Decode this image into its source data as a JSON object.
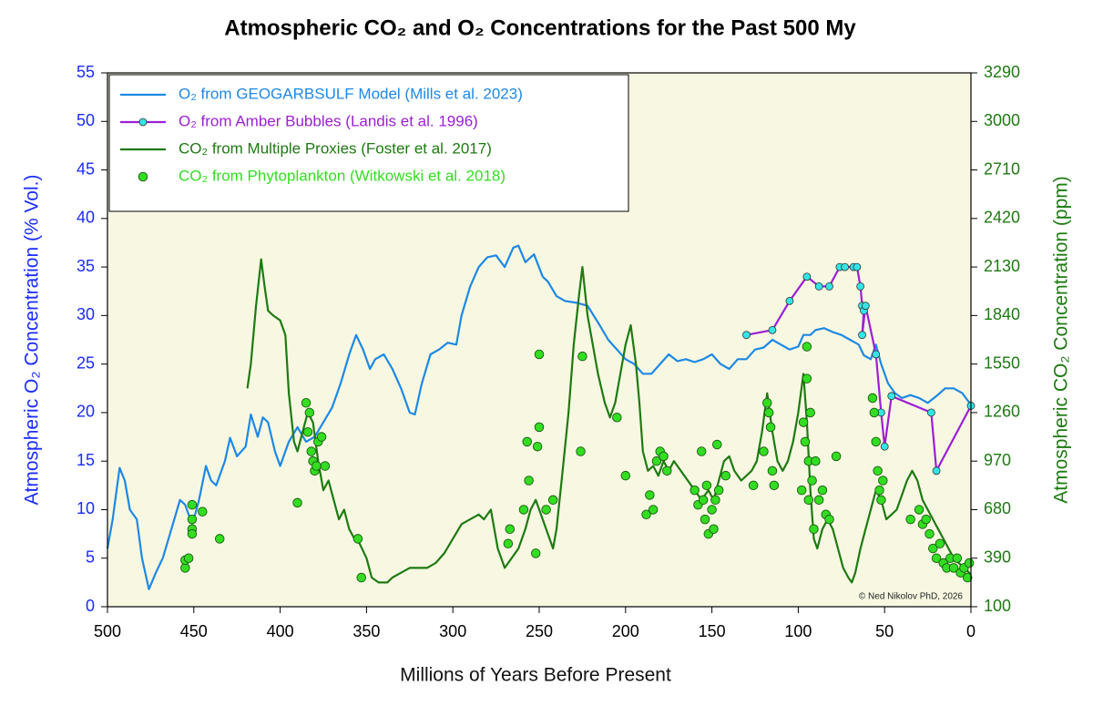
{
  "chart_data": {
    "type": "line",
    "title": "Atmospheric CO₂ and O₂ Concentrations for the Past 500 My",
    "x_label": "Millions of Years Before Present",
    "y_label": "Atmospheric O₂ Concentration (% Vol.)",
    "y2_label": "Atmospheric CO₂ Concentration (ppm)",
    "annotation": "© Ned Nikolov PhD, 2026",
    "xlim": [
      500,
      0
    ],
    "xticks": [
      500,
      450,
      400,
      350,
      300,
      250,
      200,
      150,
      100,
      50,
      0
    ],
    "ylim": [
      0,
      55
    ],
    "yticks": [
      0,
      5,
      10,
      15,
      20,
      25,
      30,
      35,
      40,
      45,
      50,
      55
    ],
    "y2lim": [
      100,
      3290
    ],
    "y2ticks": [
      100,
      390,
      680,
      970,
      1260,
      1550,
      1840,
      2130,
      2420,
      2710,
      3000,
      3290
    ],
    "legend": "upper left",
    "series": [
      {
        "name": "O₂ from GEOGARBSULF Model (Mills et al. 2023)",
        "type": "line",
        "color": "#1e88e5",
        "x": [
          500,
          497,
          493,
          490,
          487,
          483,
          480,
          476,
          472,
          468,
          463,
          458,
          455,
          452,
          450,
          447,
          443,
          440,
          437,
          432,
          429,
          425,
          420,
          417,
          413,
          410,
          407,
          403,
          400,
          395,
          390,
          385,
          380,
          375,
          370,
          365,
          360,
          356,
          352,
          348,
          345,
          340,
          335,
          330,
          325,
          322,
          318,
          313,
          308,
          303,
          298,
          295,
          290,
          285,
          280,
          275,
          270,
          265,
          262,
          258,
          253,
          248,
          245,
          240,
          235,
          228,
          222,
          215,
          210,
          205,
          200,
          195,
          190,
          185,
          180,
          175,
          170,
          165,
          160,
          155,
          150,
          145,
          140,
          135,
          130,
          125,
          120,
          115,
          110,
          105,
          100,
          97,
          93,
          90,
          85,
          80,
          75,
          70,
          65,
          62,
          58,
          55,
          52,
          48,
          44,
          40,
          35,
          30,
          25,
          20,
          15,
          10,
          5,
          0
        ],
        "values": [
          6,
          9,
          14.3,
          13,
          10,
          9,
          5,
          1.8,
          3.5,
          5,
          8,
          11,
          10.5,
          9,
          9,
          11,
          14.5,
          13,
          12.5,
          15,
          17.4,
          15.5,
          16.5,
          19.8,
          17.5,
          19.5,
          19,
          16,
          14.5,
          17,
          18.5,
          17,
          17.5,
          19,
          20.5,
          23,
          26,
          28,
          26.5,
          24.5,
          25.5,
          26,
          24.5,
          22.5,
          20,
          19.8,
          23,
          26,
          26.5,
          27.2,
          27,
          30,
          33,
          35,
          36,
          36.2,
          35,
          37,
          37.2,
          35.5,
          36.3,
          34,
          33.5,
          32,
          31.5,
          31.3,
          31,
          29,
          27.5,
          26.5,
          25.5,
          25,
          24,
          24,
          25,
          26,
          25.3,
          25.5,
          25.2,
          25.5,
          26,
          25,
          24.5,
          25.5,
          25.5,
          26.5,
          26.7,
          27.5,
          27,
          26.5,
          26.8,
          28,
          28,
          28.5,
          28.7,
          28.3,
          28,
          27.5,
          27,
          25.9,
          25.5,
          27,
          25,
          23,
          22,
          21.5,
          21.8,
          21.5,
          21,
          21.7,
          22.5,
          22.5,
          22,
          20.8
        ]
      },
      {
        "name": "O₂ from Amber Bubbles (Landis et al. 1996)",
        "type": "line-marker",
        "color": "#9b1fd6",
        "marker_color": "#33e6e6",
        "x": [
          130,
          115,
          105,
          95,
          88,
          82,
          76,
          73,
          68,
          66,
          64,
          63,
          62,
          63,
          61,
          55,
          52,
          50,
          46,
          23,
          20,
          0
        ],
        "values": [
          28,
          28.5,
          31.5,
          34,
          33,
          33,
          35,
          35,
          35,
          35,
          33,
          31,
          30.5,
          28,
          31,
          26,
          20,
          16.5,
          21.7,
          20,
          14,
          20.7
        ]
      },
      {
        "name": "CO₂ from Multiple Proxies (Foster et al. 2017)",
        "type": "line",
        "color": "#1e7a12",
        "axis": "y2",
        "x": [
          419,
          417,
          414,
          411,
          409,
          407,
          404,
          400,
          397,
          395,
          392,
          390,
          387,
          384,
          381,
          378,
          375,
          372,
          369,
          366,
          363,
          360,
          357,
          354,
          350,
          347,
          343,
          338,
          335,
          330,
          325,
          320,
          315,
          310,
          305,
          300,
          295,
          290,
          285,
          282,
          278,
          274,
          270,
          266,
          262,
          258,
          255,
          252,
          249,
          246,
          242,
          240,
          237,
          233,
          230,
          227,
          225,
          222,
          219,
          216,
          212,
          209,
          206,
          203,
          200,
          197,
          194,
          192,
          190,
          187,
          184,
          181,
          178,
          175,
          172,
          168,
          164,
          160,
          156,
          152,
          149,
          146,
          143,
          140,
          137,
          133,
          130,
          127,
          124,
          121,
          118,
          115,
          112,
          109,
          106,
          103,
          100,
          97,
          95,
          93,
          91,
          89,
          86,
          83,
          80,
          77,
          74,
          71,
          69,
          67,
          64,
          61,
          58,
          55,
          52,
          49,
          46,
          43,
          40,
          37,
          34,
          31,
          28,
          25,
          22,
          19,
          16,
          13,
          10,
          7,
          4,
          1,
          0
        ],
        "values": [
          1405,
          1550,
          1898,
          2176,
          2014,
          1869,
          1840,
          1811,
          1724,
          1376,
          1086,
          1028,
          1144,
          1260,
          1202,
          970,
          796,
          854,
          738,
          622,
          680,
          564,
          506,
          477,
          390,
          274,
          245,
          245,
          274,
          303,
          332,
          332,
          332,
          361,
          419,
          506,
          593,
          622,
          651,
          622,
          680,
          448,
          332,
          390,
          448,
          564,
          680,
          738,
          651,
          564,
          448,
          564,
          854,
          1260,
          1666,
          1956,
          2130,
          1840,
          1666,
          1492,
          1318,
          1231,
          1318,
          1492,
          1666,
          1782,
          1550,
          1318,
          1028,
          912,
          941,
          883,
          970,
          912,
          970,
          912,
          854,
          796,
          738,
          796,
          738,
          854,
          970,
          999,
          912,
          854,
          883,
          912,
          970,
          1144,
          1376,
          1144,
          970,
          912,
          970,
          1086,
          1260,
          1492,
          1202,
          796,
          506,
          448,
          564,
          622,
          564,
          448,
          332,
          274,
          245,
          303,
          448,
          564,
          680,
          796,
          738,
          622,
          651,
          680,
          767,
          854,
          912,
          854,
          738,
          680,
          622,
          564,
          506,
          448,
          390,
          361,
          332,
          303,
          274
        ]
      },
      {
        "name": "CO₂ from Phytoplankton (Witkowski et al. 2018)",
        "type": "scatter",
        "color": "#33dd22",
        "axis": "y2",
        "x": [
          455,
          455,
          453,
          451,
          451,
          451,
          451,
          445,
          435,
          390,
          385,
          384,
          383,
          382,
          381,
          380,
          379,
          378,
          376,
          374,
          355,
          353,
          268,
          267,
          259,
          257,
          256,
          252,
          251,
          250,
          250,
          246,
          242,
          226,
          225,
          205,
          200,
          188,
          186,
          184,
          182,
          180,
          178,
          176,
          160,
          158,
          156,
          155,
          154,
          153,
          152,
          150,
          149,
          148,
          147,
          146,
          142,
          126,
          120,
          118,
          117,
          116,
          115,
          114,
          98,
          97,
          96,
          95,
          95,
          94,
          94,
          93,
          92,
          91,
          90,
          88,
          86,
          84,
          82,
          78,
          57,
          56,
          55,
          54,
          53,
          52,
          51,
          35,
          30,
          28,
          26,
          24,
          22,
          20,
          18,
          16,
          14,
          12,
          10,
          8,
          6,
          4,
          2,
          1
        ],
        "values": [
          332,
          378,
          390,
          709,
          622,
          564,
          535,
          668,
          506,
          721,
          1318,
          1144,
          1260,
          1028,
          970,
          912,
          941,
          1086,
          1115,
          941,
          506,
          274,
          477,
          564,
          680,
          1086,
          854,
          419,
          1057,
          1173,
          1608,
          680,
          738,
          1028,
          1596,
          1231,
          883,
          651,
          767,
          680,
          970,
          1028,
          999,
          912,
          796,
          709,
          1028,
          738,
          622,
          825,
          535,
          680,
          564,
          738,
          1069,
          796,
          883,
          825,
          1028,
          1318,
          1260,
          1173,
          912,
          825,
          796,
          1202,
          1086,
          1463,
          1654,
          970,
          738,
          1260,
          854,
          564,
          970,
          738,
          796,
          651,
          622,
          999,
          1347,
          1260,
          1086,
          912,
          796,
          738,
          854,
          622,
          680,
          593,
          622,
          535,
          448,
          390,
          477,
          361,
          332,
          390,
          332,
          390,
          303,
          332,
          274,
          361
        ]
      }
    ]
  }
}
